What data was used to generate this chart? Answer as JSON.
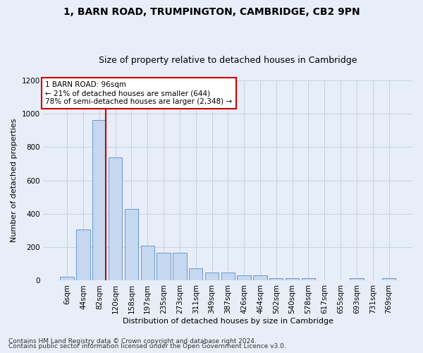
{
  "title": "1, BARN ROAD, TRUMPINGTON, CAMBRIDGE, CB2 9PN",
  "subtitle": "Size of property relative to detached houses in Cambridge",
  "xlabel": "Distribution of detached houses by size in Cambridge",
  "ylabel": "Number of detached properties",
  "bar_labels": [
    "6sqm",
    "44sqm",
    "82sqm",
    "120sqm",
    "158sqm",
    "197sqm",
    "235sqm",
    "273sqm",
    "311sqm",
    "349sqm",
    "387sqm",
    "426sqm",
    "464sqm",
    "502sqm",
    "540sqm",
    "578sqm",
    "617sqm",
    "655sqm",
    "693sqm",
    "731sqm",
    "769sqm"
  ],
  "bar_values": [
    25,
    305,
    965,
    740,
    430,
    210,
    165,
    165,
    75,
    48,
    48,
    30,
    30,
    15,
    15,
    15,
    0,
    0,
    15,
    0,
    15
  ],
  "bar_color": "#c5d8f0",
  "bar_edge_color": "#6699cc",
  "red_line_x": 2.42,
  "annotation_text": "1 BARN ROAD: 96sqm\n← 21% of detached houses are smaller (644)\n78% of semi-detached houses are larger (2,348) →",
  "annotation_box_color": "#ffffff",
  "annotation_border_color": "#cc0000",
  "ylim": [
    0,
    1200
  ],
  "yticks": [
    0,
    200,
    400,
    600,
    800,
    1000,
    1200
  ],
  "footer_line1": "Contains HM Land Registry data © Crown copyright and database right 2024.",
  "footer_line2": "Contains public sector information licensed under the Open Government Licence v3.0.",
  "background_color": "#e8eef8",
  "plot_bg_color": "#e8eef8",
  "grid_color": "#c8d0e0",
  "title_fontsize": 10,
  "subtitle_fontsize": 9,
  "axis_label_fontsize": 8,
  "tick_fontsize": 7.5,
  "footer_fontsize": 6.5,
  "annotation_fontsize": 7.5
}
